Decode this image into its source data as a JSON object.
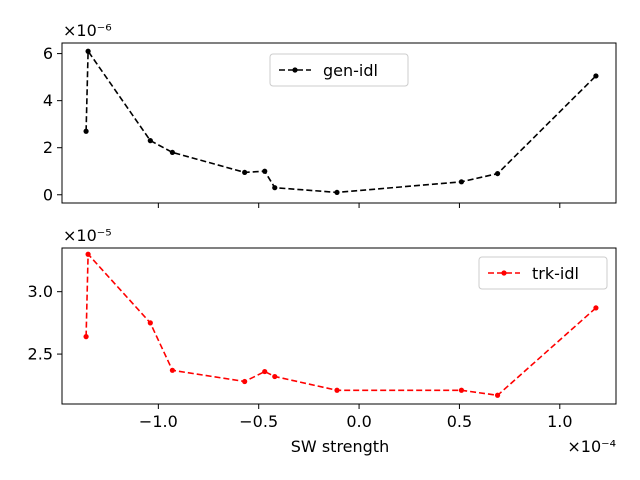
{
  "chart_data": [
    {
      "type": "line",
      "x_scale_label": "×10⁻⁴",
      "y_scale_label": "×10⁻⁶",
      "xlabel": "",
      "ylabel": "",
      "xlim": [
        -1.48,
        1.28
      ],
      "ylim": [
        -0.35,
        6.45
      ],
      "yticks": [
        0,
        2,
        4,
        6
      ],
      "ytick_labels": [
        "0",
        "2",
        "4",
        "6"
      ],
      "xticks": [
        -1.0,
        -0.5,
        0.0,
        0.5,
        1.0
      ],
      "xtick_labels": [],
      "grid": false,
      "legend_position": "top-center",
      "series": [
        {
          "name": "gen-idl",
          "color": "#000000",
          "style": "dashed",
          "marker": "circle",
          "x": [
            -1.36,
            -1.35,
            -1.04,
            -0.93,
            -0.57,
            -0.47,
            -0.42,
            -0.11,
            0.51,
            0.69,
            1.18
          ],
          "y": [
            2.7,
            6.1,
            2.3,
            1.8,
            0.95,
            1.0,
            0.3,
            0.1,
            0.55,
            0.9,
            5.05
          ]
        }
      ]
    },
    {
      "type": "line",
      "x_scale_label": "×10⁻⁴",
      "y_scale_label": "×10⁻⁵",
      "xlabel": "SW strength",
      "ylabel": "",
      "xlim": [
        -1.48,
        1.28
      ],
      "ylim": [
        2.1,
        3.35
      ],
      "yticks": [
        2.5,
        3.0
      ],
      "ytick_labels": [
        "2.5",
        "3.0"
      ],
      "xticks": [
        -1.0,
        -0.5,
        0.0,
        0.5,
        1.0
      ],
      "xtick_labels": [
        "−1.0",
        "−0.5",
        "0.0",
        "0.5",
        "1.0"
      ],
      "grid": false,
      "legend_position": "top-right",
      "series": [
        {
          "name": "trk-idl",
          "color": "#ff0000",
          "style": "dashed",
          "marker": "circle",
          "x": [
            -1.36,
            -1.35,
            -1.04,
            -0.93,
            -0.57,
            -0.47,
            -0.42,
            -0.11,
            0.51,
            0.69,
            1.18
          ],
          "y": [
            2.64,
            3.3,
            2.75,
            2.37,
            2.28,
            2.36,
            2.32,
            2.21,
            2.21,
            2.17,
            2.87
          ]
        }
      ]
    }
  ]
}
